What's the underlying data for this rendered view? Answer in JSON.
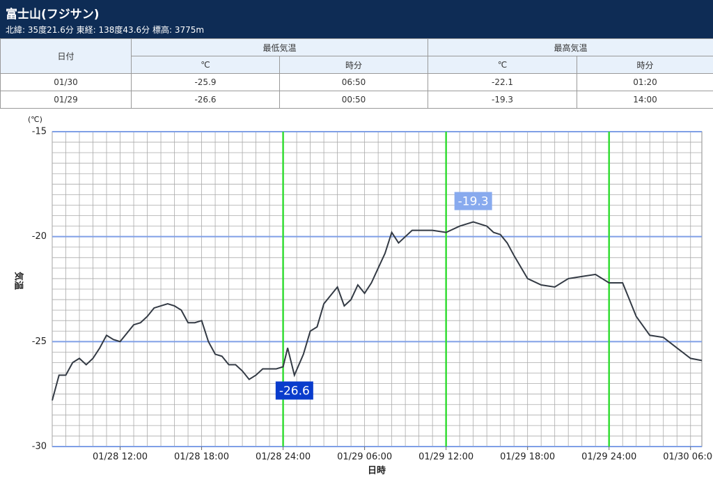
{
  "header": {
    "title": "富士山(フジサン)",
    "subtitle": "北緯: 35度21.6分 東経: 138度43.6分 標高: 3775m"
  },
  "table": {
    "header": [
      "日付",
      "最低気温",
      "最高気温"
    ],
    "subheader": [
      "℃",
      "時分",
      "℃",
      "時分"
    ],
    "rows": [
      [
        "01/30",
        "-25.9",
        "06:50",
        "-22.1",
        "01:20"
      ],
      [
        "01/29",
        "-26.6",
        "00:50",
        "-19.3",
        "14:00"
      ]
    ]
  },
  "chart_data": {
    "type": "line",
    "y_unit": "(℃)",
    "y_label": "気温",
    "x_label": "日時",
    "color": "#333a44",
    "x": [
      "01/28 07:00",
      "01/28 07:30",
      "01/28 08:00",
      "01/28 08:30",
      "01/28 09:00",
      "01/28 09:30",
      "01/28 10:00",
      "01/28 10:30",
      "01/28 11:00",
      "01/28 11:30",
      "01/28 12:00",
      "01/28 12:30",
      "01/28 13:00",
      "01/28 13:30",
      "01/28 14:00",
      "01/28 14:30",
      "01/28 15:00",
      "01/28 15:30",
      "01/28 16:00",
      "01/28 16:30",
      "01/28 17:00",
      "01/28 17:30",
      "01/28 18:00",
      "01/28 18:30",
      "01/28 19:00",
      "01/28 19:30",
      "01/28 20:00",
      "01/28 20:30",
      "01/28 21:00",
      "01/28 21:30",
      "01/28 22:00",
      "01/28 22:30",
      "01/28 23:00",
      "01/28 23:30",
      "01/29 00:00",
      "01/29 00:20",
      "01/29 00:50",
      "01/29 01:30",
      "01/29 02:00",
      "01/29 02:30",
      "01/29 03:00",
      "01/29 03:30",
      "01/29 04:00",
      "01/29 04:30",
      "01/29 05:00",
      "01/29 05:30",
      "01/29 06:00",
      "01/29 06:30",
      "01/29 07:00",
      "01/29 07:30",
      "01/29 08:00",
      "01/29 08:30",
      "01/29 09:00",
      "01/29 09:30",
      "01/29 10:00",
      "01/29 11:00",
      "01/29 12:00",
      "01/29 13:00",
      "01/29 13:30",
      "01/29 14:00",
      "01/29 15:00",
      "01/29 15:30",
      "01/29 16:00",
      "01/29 16:30",
      "01/29 17:00",
      "01/29 18:00",
      "01/29 19:00",
      "01/29 20:00",
      "01/29 21:00",
      "01/29 22:00",
      "01/29 23:00",
      "01/30 00:00",
      "01/30 01:00",
      "01/30 01:30",
      "01/30 02:00",
      "01/30 03:00",
      "01/30 04:00",
      "01/30 05:00",
      "01/30 06:00",
      "01/30 06:50"
    ],
    "values": [
      -27.8,
      -26.6,
      -26.6,
      -26.0,
      -25.8,
      -26.1,
      -25.8,
      -25.3,
      -24.7,
      -24.9,
      -25.0,
      -24.6,
      -24.2,
      -24.1,
      -23.8,
      -23.4,
      -23.3,
      -23.2,
      -23.3,
      -23.5,
      -24.1,
      -24.1,
      -24.0,
      -25.0,
      -25.6,
      -25.7,
      -26.1,
      -26.1,
      -26.4,
      -26.8,
      -26.6,
      -26.3,
      -26.3,
      -26.3,
      -26.2,
      -25.3,
      -26.6,
      -25.6,
      -24.5,
      -24.3,
      -23.2,
      -22.8,
      -22.4,
      -23.3,
      -23.0,
      -22.3,
      -22.7,
      -22.2,
      -21.5,
      -20.8,
      -19.8,
      -20.3,
      -20.0,
      -19.7,
      -19.7,
      -19.7,
      -19.8,
      -19.5,
      -19.4,
      -19.3,
      -19.5,
      -19.8,
      -19.9,
      -20.3,
      -20.9,
      -22.0,
      -22.3,
      -22.4,
      -22.0,
      -21.9,
      -21.8,
      -22.2,
      -22.2,
      -23.0,
      -23.8,
      -24.7,
      -24.8,
      -25.3,
      -25.8,
      -25.9
    ],
    "xlim": [
      "01/28 07:00",
      "01/30 06:50"
    ],
    "xticks": [
      "01/28 12:00",
      "01/28 18:00",
      "01/28 24:00",
      "01/29 06:00",
      "01/29 12:00",
      "01/29 18:00",
      "01/29 24:00",
      "01/30 06:00"
    ],
    "ylim": [
      -30,
      -15
    ],
    "yticks": [
      -30,
      -25,
      -20,
      -15
    ],
    "grid": true,
    "markers": [
      "01/28 24:00",
      "01/29 12:00",
      "01/29 24:00"
    ],
    "marker_color": "#33dd33",
    "annotations": [
      {
        "x": "01/29 00:50",
        "value": -26.6,
        "color": "#0a3ccc"
      },
      {
        "x": "01/29 14:00",
        "value": -19.3,
        "color": "#88aaee"
      }
    ]
  }
}
